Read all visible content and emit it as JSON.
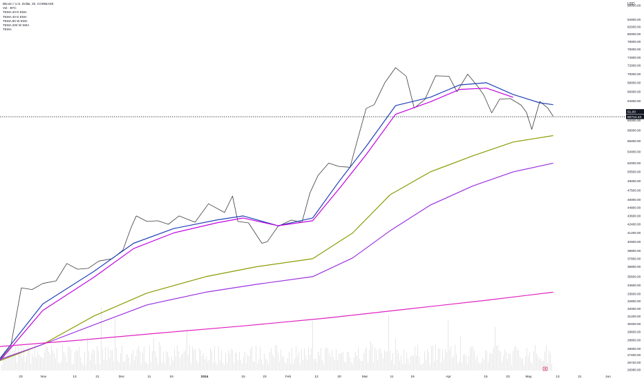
{
  "legend": {
    "title": "Bitcoin / U.S. Dollar, 4h, COINBASE",
    "vol": "Vol · BTC",
    "ema_lines": [
      "TEMA 20 D EMA",
      "TEMA 40 D EMA",
      "TEMA 80 W EMA",
      "TEMA 200 W SMA",
      "TEMA"
    ]
  },
  "axis": {
    "currency": "USD",
    "price_ticks": [
      "26080.00",
      "26720.00",
      "27400.00",
      "28000.00",
      "28800.00",
      "29600.00",
      "30400.00",
      "31200.00",
      "32000.00",
      "32800.00",
      "33600.00",
      "34600.00",
      "35600.00",
      "36800.00",
      "37800.00",
      "38800.00",
      "40000.00",
      "41200.00",
      "42400.00",
      "43600.00",
      "44800.00",
      "46000.00",
      "47500.00",
      "49000.00",
      "50500.00",
      "52000.00",
      "54000.00",
      "56000.00",
      "58000.00",
      "60000.00",
      "62000.00",
      "64000.00",
      "66000.00",
      "68000.00",
      "70000.00",
      "72000.00",
      "74000.00",
      "76000.00",
      "78000.00",
      "80000.00",
      "82000.00",
      "84000.00",
      "88000.00"
    ],
    "price_tag": "60714.43",
    "price_tag2": "61,00",
    "time_ticks": [
      "23",
      "Nov",
      "13",
      "21",
      "Dec",
      "11",
      "19",
      "2024",
      "15",
      "23",
      "Feb",
      "12",
      "20",
      "Mar",
      "11",
      "19",
      "Apr",
      "15",
      "23",
      "May",
      "13",
      "21",
      "Jun"
    ]
  },
  "colors": {
    "price": "#3a3a3a",
    "ema_blue": "#1f3fb8",
    "ema_purple": "#c000e0",
    "ema_olive": "#8a9a00",
    "ema_yellow": "#e8e000",
    "sma_violet": "#9b30e0",
    "ema_orange": "#d07050",
    "sma_magenta": "#e020c0",
    "short_red": "#d02020",
    "short_orange": "#f0a020"
  },
  "chart_data": {
    "type": "line",
    "title": "Bitcoin / U.S. Dollar, 4h, COINBASE",
    "y_scale": "log",
    "ylim": [
      26080,
      88000
    ],
    "xlim": [
      "2023-10-16",
      "2024-06-06"
    ],
    "series": [
      {
        "name": "Bitcoin / U.S. Dollar",
        "color": "#3a3a3a",
        "x": [
          "2023-10-16",
          "2023-10-20",
          "2023-10-24",
          "2023-10-28",
          "2023-11-01",
          "2023-11-06",
          "2023-11-10",
          "2023-11-14",
          "2023-11-18",
          "2023-11-22",
          "2023-11-27",
          "2023-12-01",
          "2023-12-04",
          "2023-12-06",
          "2023-12-10",
          "2023-12-14",
          "2023-12-18",
          "2023-12-22",
          "2023-12-28",
          "2024-01-02",
          "2024-01-08",
          "2024-01-11",
          "2024-01-13",
          "2024-01-17",
          "2024-01-22",
          "2024-01-24",
          "2024-01-28",
          "2024-02-02",
          "2024-02-06",
          "2024-02-09",
          "2024-02-12",
          "2024-02-16",
          "2024-02-20",
          "2024-02-24",
          "2024-02-27",
          "2024-03-01",
          "2024-03-04",
          "2024-03-08",
          "2024-03-12",
          "2024-03-16",
          "2024-03-19",
          "2024-03-23",
          "2024-03-27",
          "2024-04-01",
          "2024-04-04",
          "2024-04-08",
          "2024-04-12",
          "2024-04-14",
          "2024-04-17",
          "2024-04-20",
          "2024-04-24",
          "2024-04-28",
          "2024-04-30",
          "2024-05-02",
          "2024-05-05",
          "2024-05-08",
          "2024-05-10"
        ],
        "values": [
          27000,
          28200,
          34300,
          34100,
          34800,
          35100,
          37200,
          36500,
          36600,
          37500,
          37800,
          38900,
          41900,
          43600,
          42800,
          42900,
          42400,
          43600,
          42700,
          45400,
          44100,
          46600,
          42800,
          42600,
          39800,
          40000,
          42100,
          43000,
          42700,
          47100,
          49900,
          52000,
          51400,
          51300,
          56600,
          62400,
          63200,
          68000,
          71500,
          69500,
          62500,
          64300,
          69600,
          69500,
          66000,
          70000,
          67000,
          65300,
          61500,
          64400,
          64500,
          63100,
          61600,
          58200,
          63900,
          62500,
          60800
        ]
      },
      {
        "name": "TEMA 20 D EMA",
        "color": "#1f3fb8",
        "x": [
          "2023-10-16",
          "2023-11-01",
          "2023-11-20",
          "2023-12-05",
          "2023-12-20",
          "2024-01-05",
          "2024-01-15",
          "2024-01-28",
          "2024-02-10",
          "2024-02-20",
          "2024-03-01",
          "2024-03-12",
          "2024-03-25",
          "2024-04-05",
          "2024-04-15",
          "2024-04-25",
          "2024-05-05",
          "2024-05-10"
        ],
        "values": [
          27100,
          32500,
          36200,
          39800,
          41800,
          43000,
          43600,
          42200,
          43300,
          49000,
          55000,
          63000,
          64800,
          67500,
          68000,
          65400,
          63600,
          63200
        ]
      },
      {
        "name": "TEMA 40 D EMA",
        "color": "#c000e0",
        "x": [
          "2023-10-16",
          "2023-11-01",
          "2023-11-20",
          "2023-12-05",
          "2023-12-20",
          "2024-01-05",
          "2024-01-15",
          "2024-01-28",
          "2024-02-10",
          "2024-02-20",
          "2024-03-01",
          "2024-03-12",
          "2024-03-25",
          "2024-04-05",
          "2024-04-15",
          "2024-04-25"
        ],
        "values": [
          26900,
          31800,
          35500,
          39100,
          41200,
          42600,
          43300,
          42200,
          42900,
          47800,
          53500,
          61200,
          63800,
          66500,
          66800,
          64800
        ]
      },
      {
        "name": "TEMA 80 W EMA",
        "color": "#8a9a00",
        "x": [
          "2023-10-16",
          "2023-11-01",
          "2023-11-20",
          "2023-12-10",
          "2024-01-01",
          "2024-01-20",
          "2024-02-10",
          "2024-02-25",
          "2024-03-10",
          "2024-03-25",
          "2024-04-10",
          "2024-04-25",
          "2024-05-10"
        ],
        "values": [
          26900,
          28400,
          31200,
          33700,
          35600,
          36800,
          37800,
          41200,
          46800,
          50500,
          53300,
          55800,
          57000
        ]
      },
      {
        "name": "TEMA 200 W SMA",
        "color": "#9b30e0",
        "x": [
          "2023-10-16",
          "2023-11-01",
          "2023-11-20",
          "2023-12-10",
          "2024-01-01",
          "2024-01-20",
          "2024-02-10",
          "2024-02-25",
          "2024-03-10",
          "2024-03-25",
          "2024-04-10",
          "2024-04-25",
          "2024-05-10"
        ],
        "values": [
          27000,
          28400,
          30300,
          32400,
          33800,
          34700,
          35600,
          37900,
          41500,
          45200,
          48200,
          50500,
          52000
        ]
      },
      {
        "name": "TEMA",
        "color": "#e020c0",
        "x": [
          "2023-10-16",
          "2023-11-15",
          "2023-12-15",
          "2024-01-15",
          "2024-02-15",
          "2024-03-15",
          "2024-04-15",
          "2024-05-10"
        ],
        "values": [
          28200,
          28800,
          29500,
          30200,
          31000,
          31900,
          32900,
          33800
        ]
      }
    ]
  }
}
